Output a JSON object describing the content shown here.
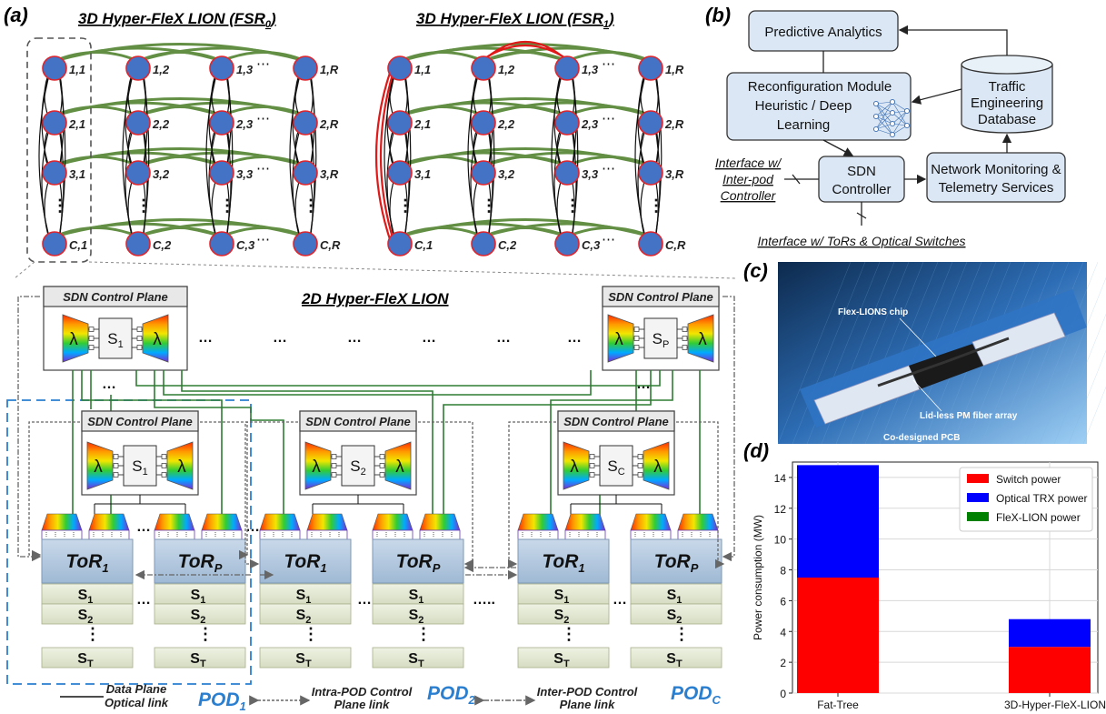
{
  "panels": {
    "a": "(a)",
    "b": "(b)",
    "c": "(c)",
    "d": "(d)"
  },
  "grid_titles": {
    "fsr0": "3D Hyper-FleX LION (FSR",
    "fsr0_sub": "0",
    "fsr1": "3D Hyper-FleX LION (FSR",
    "fsr1_sub": "1",
    "close": ")"
  },
  "nodes": {
    "row_labels": [
      "1",
      "2",
      "3",
      "C"
    ],
    "col_labels": [
      "1",
      "2",
      "3",
      "R"
    ],
    "ellipsis": "⋯",
    "vdots": "⋮"
  },
  "lion2d": {
    "title": "2D Hyper-FleX LION",
    "sdn": "SDN Control Plane",
    "lambda": "λ",
    "top_switches": [
      {
        "base": "S",
        "sub": "1"
      },
      {
        "base": "S",
        "sub": "P"
      }
    ],
    "pod_switches": [
      {
        "base": "S",
        "sub": "1"
      },
      {
        "base": "S",
        "sub": "2"
      },
      {
        "base": "S",
        "sub": "C"
      }
    ],
    "tor": [
      {
        "base": "ToR",
        "sub": "1"
      },
      {
        "base": "ToR",
        "sub": "P"
      }
    ],
    "stack": [
      {
        "base": "S",
        "sub": "1"
      },
      {
        "base": "S",
        "sub": "2"
      },
      {
        "base": "S",
        "sub": "T"
      }
    ],
    "dots": "…",
    "dots_big": "…..",
    "pods": [
      {
        "base": "POD",
        "sub": "1"
      },
      {
        "base": "POD",
        "sub": "2"
      },
      {
        "base": "POD",
        "sub": "C"
      }
    ],
    "legend": {
      "data1": "Data Plane",
      "data2": "Optical link",
      "intra1": "Intra-POD Control",
      "intra2": "Plane link",
      "inter1": "Inter-POD Control",
      "inter2": "Plane link"
    }
  },
  "arch": {
    "predictive": "Predictive Analytics",
    "reconf1": "Reconfiguration Module",
    "reconf2": "Heuristic / Deep",
    "reconf3": "Learning",
    "db1": "Traffic",
    "db2": "Engineering",
    "db3": "Database",
    "sdn1": "SDN",
    "sdn2": "Controller",
    "mon1": "Network Monitoring &",
    "mon2": "Telemetry Services",
    "if1": "Interface w/",
    "if2": "Inter-pod",
    "if3": "Controller",
    "if_tor": "Interface w/ ToRs & Optical Switches"
  },
  "photo": {
    "chip": "Flex-LIONS chip",
    "fiber": "Lid-less PM fiber array",
    "pcb": "Co-designed PCB"
  },
  "chart_data": {
    "type": "bar",
    "stacked": true,
    "categories": [
      "Fat-Tree",
      "3D-Hyper-FleX-LION"
    ],
    "series": [
      {
        "name": "Switch power",
        "color": "#ff0000",
        "values": [
          7.5,
          3.0
        ]
      },
      {
        "name": "Optical TRX power",
        "color": "#0000ff",
        "values": [
          7.3,
          1.8
        ]
      },
      {
        "name": "FleX-LION power",
        "color": "#008000",
        "values": [
          0,
          0
        ]
      }
    ],
    "ylabel": "Power consumption (MW)",
    "ylim": [
      0,
      15
    ],
    "yticks": [
      0,
      2,
      4,
      6,
      8,
      10,
      12,
      14
    ],
    "grid": true,
    "legend": "top-right"
  }
}
